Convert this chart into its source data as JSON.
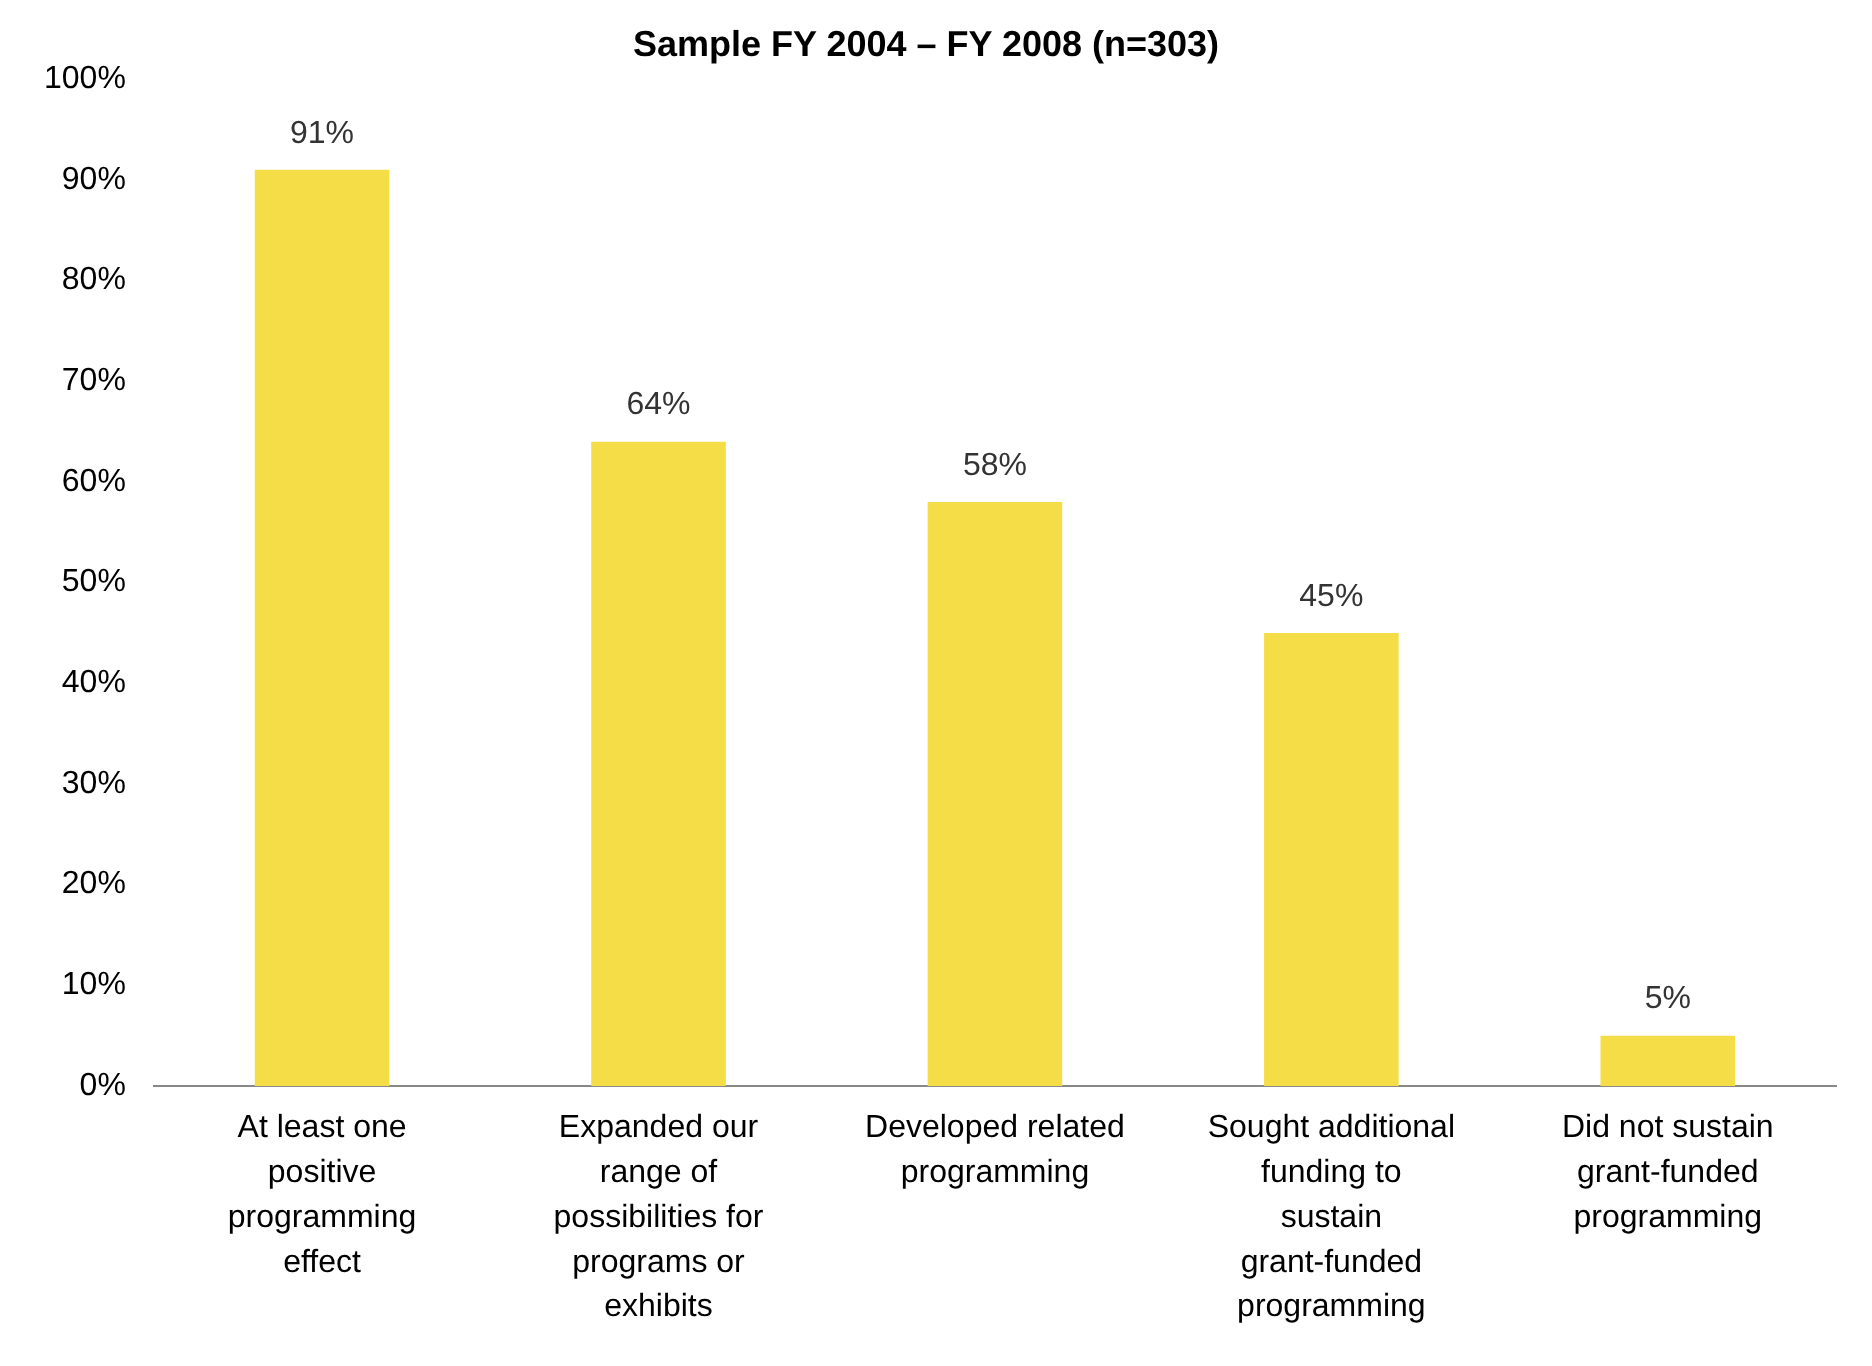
{
  "chart_data": {
    "type": "bar",
    "title": "Sample FY 2004 – FY 2008 (n=303)",
    "categories": [
      "At least one positive programming effect",
      "Expanded our range of possibilities for programs or exhibits",
      "Developed related programming",
      "Sought additional funding to sustain grant-funded programming",
      "Did not sustain grant-funded programming"
    ],
    "values": [
      91,
      64,
      58,
      45,
      5
    ],
    "value_labels": [
      "91%",
      "64%",
      "58%",
      "45%",
      "5%"
    ],
    "color": "#f5dd47",
    "ylim": [
      0,
      100
    ],
    "yticks": [
      {
        "value": 0,
        "label": "0%"
      },
      {
        "value": 10,
        "label": "10%"
      },
      {
        "value": 20,
        "label": "20%"
      },
      {
        "value": 30,
        "label": "30%"
      },
      {
        "value": 40,
        "label": "40%"
      },
      {
        "value": 50,
        "label": "50%"
      },
      {
        "value": 60,
        "label": "60%"
      },
      {
        "value": 70,
        "label": "70%"
      },
      {
        "value": 80,
        "label": "80%"
      },
      {
        "value": 90,
        "label": "90%"
      },
      {
        "value": 100,
        "label": "100%"
      }
    ],
    "grid": false,
    "legend": false
  }
}
